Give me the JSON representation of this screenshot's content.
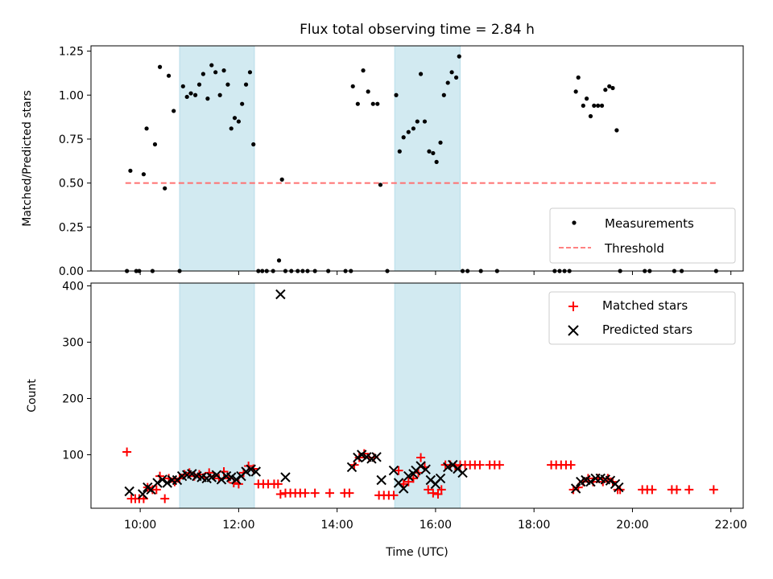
{
  "title": "Flux total observing time = 2.84 h",
  "colors": {
    "measurement": "#000000",
    "threshold": "#ff7070",
    "matched": "#ff0000",
    "predicted": "#000000",
    "shade": "#add8e6"
  },
  "chart_data": [
    {
      "type": "scatter",
      "panel": "top",
      "ylabel": "Matched/Predicted stars",
      "xlabel": "",
      "xlim": [
        9.0,
        22.25
      ],
      "ylim": [
        0,
        1.28
      ],
      "yticks": [
        0,
        0.25,
        0.5,
        0.75,
        1.0,
        1.25
      ],
      "ytick_labels": [
        "0.00",
        "0.25",
        "0.50",
        "0.75",
        "1.00",
        "1.25"
      ],
      "xticks": [
        10,
        12,
        14,
        16,
        18,
        20,
        22
      ],
      "shaded_spans": [
        [
          10.8,
          12.32
        ],
        [
          15.17,
          16.5
        ]
      ],
      "legend": {
        "position": "lower-right",
        "entries": [
          "Measurements",
          "Threshold"
        ]
      },
      "threshold": {
        "name": "Threshold",
        "y": 0.5,
        "x": [
          9.7,
          21.7
        ]
      },
      "series": [
        {
          "name": "Measurements",
          "points": [
            [
              9.73,
              0.0
            ],
            [
              9.8,
              0.57
            ],
            [
              9.92,
              0.0
            ],
            [
              9.98,
              0.0
            ],
            [
              10.07,
              0.55
            ],
            [
              10.13,
              0.81
            ],
            [
              10.25,
              0.0
            ],
            [
              10.3,
              0.72
            ],
            [
              10.4,
              1.16
            ],
            [
              10.5,
              0.47
            ],
            [
              10.58,
              1.11
            ],
            [
              10.68,
              0.91
            ],
            [
              10.8,
              0.0
            ],
            [
              10.87,
              1.05
            ],
            [
              10.95,
              0.99
            ],
            [
              11.03,
              1.01
            ],
            [
              11.12,
              1.0
            ],
            [
              11.2,
              1.06
            ],
            [
              11.28,
              1.12
            ],
            [
              11.37,
              0.98
            ],
            [
              11.45,
              1.17
            ],
            [
              11.53,
              1.13
            ],
            [
              11.62,
              1.0
            ],
            [
              11.7,
              1.14
            ],
            [
              11.78,
              1.06
            ],
            [
              11.85,
              0.81
            ],
            [
              11.92,
              0.87
            ],
            [
              12.0,
              0.85
            ],
            [
              12.07,
              0.95
            ],
            [
              12.15,
              1.06
            ],
            [
              12.23,
              1.13
            ],
            [
              12.3,
              0.72
            ],
            [
              12.4,
              0.0
            ],
            [
              12.48,
              0.0
            ],
            [
              12.57,
              0.0
            ],
            [
              12.7,
              0.0
            ],
            [
              12.82,
              0.06
            ],
            [
              12.88,
              0.52
            ],
            [
              12.95,
              0.0
            ],
            [
              13.07,
              0.0
            ],
            [
              13.2,
              0.0
            ],
            [
              13.3,
              0.0
            ],
            [
              13.4,
              0.0
            ],
            [
              13.55,
              0.0
            ],
            [
              13.82,
              0.0
            ],
            [
              14.17,
              0.0
            ],
            [
              14.28,
              0.0
            ],
            [
              14.32,
              1.05
            ],
            [
              14.42,
              0.95
            ],
            [
              14.53,
              1.14
            ],
            [
              14.63,
              1.02
            ],
            [
              14.73,
              0.95
            ],
            [
              14.82,
              0.95
            ],
            [
              14.88,
              0.49
            ],
            [
              15.02,
              0.0
            ],
            [
              15.2,
              1.0
            ],
            [
              15.27,
              0.68
            ],
            [
              15.35,
              0.76
            ],
            [
              15.45,
              0.79
            ],
            [
              15.55,
              0.81
            ],
            [
              15.63,
              0.85
            ],
            [
              15.7,
              1.12
            ],
            [
              15.78,
              0.85
            ],
            [
              15.87,
              0.68
            ],
            [
              15.95,
              0.67
            ],
            [
              16.02,
              0.62
            ],
            [
              16.1,
              0.73
            ],
            [
              16.17,
              1.0
            ],
            [
              16.25,
              1.07
            ],
            [
              16.33,
              1.13
            ],
            [
              16.42,
              1.1
            ],
            [
              16.48,
              1.22
            ],
            [
              16.55,
              0.0
            ],
            [
              16.65,
              0.0
            ],
            [
              16.92,
              0.0
            ],
            [
              17.25,
              0.0
            ],
            [
              18.42,
              0.0
            ],
            [
              18.52,
              0.0
            ],
            [
              18.62,
              0.0
            ],
            [
              18.72,
              0.0
            ],
            [
              18.85,
              1.02
            ],
            [
              18.9,
              1.1
            ],
            [
              19.0,
              0.94
            ],
            [
              19.07,
              0.98
            ],
            [
              19.15,
              0.88
            ],
            [
              19.22,
              0.94
            ],
            [
              19.3,
              0.94
            ],
            [
              19.38,
              0.94
            ],
            [
              19.45,
              1.03
            ],
            [
              19.53,
              1.05
            ],
            [
              19.6,
              1.04
            ],
            [
              19.68,
              0.8
            ],
            [
              19.75,
              0.0
            ],
            [
              20.25,
              0.0
            ],
            [
              20.35,
              0.0
            ],
            [
              20.85,
              0.0
            ],
            [
              21.0,
              0.0
            ],
            [
              21.7,
              0.0
            ]
          ]
        }
      ]
    },
    {
      "type": "scatter",
      "panel": "bottom",
      "ylabel": "Count",
      "xlabel": "Time (UTC)",
      "xlim": [
        9.0,
        22.25
      ],
      "ylim": [
        5,
        405
      ],
      "yticks": [
        100,
        200,
        300,
        400
      ],
      "ytick_labels": [
        "100",
        "200",
        "300",
        "400"
      ],
      "xticks": [
        10,
        12,
        14,
        16,
        18,
        20,
        22
      ],
      "xtick_labels": [
        "10:00",
        "12:00",
        "14:00",
        "16:00",
        "18:00",
        "20:00",
        "22:00"
      ],
      "shaded_spans": [
        [
          10.8,
          12.32
        ],
        [
          15.17,
          16.5
        ]
      ],
      "legend": {
        "position": "upper-right",
        "entries": [
          "Matched stars",
          "Predicted stars"
        ]
      },
      "series": [
        {
          "name": "Matched stars",
          "marker": "plus",
          "points": [
            [
              9.73,
              105
            ],
            [
              9.82,
              22
            ],
            [
              9.9,
              22
            ],
            [
              9.98,
              22
            ],
            [
              10.07,
              22
            ],
            [
              10.15,
              42
            ],
            [
              10.25,
              38
            ],
            [
              10.33,
              38
            ],
            [
              10.4,
              62
            ],
            [
              10.5,
              22
            ],
            [
              10.58,
              58
            ],
            [
              10.7,
              52
            ],
            [
              10.8,
              58
            ],
            [
              10.9,
              65
            ],
            [
              11.0,
              68
            ],
            [
              11.1,
              62
            ],
            [
              11.2,
              65
            ],
            [
              11.3,
              60
            ],
            [
              11.4,
              68
            ],
            [
              11.5,
              62
            ],
            [
              11.6,
              58
            ],
            [
              11.7,
              70
            ],
            [
              11.8,
              58
            ],
            [
              11.9,
              50
            ],
            [
              12.0,
              48
            ],
            [
              12.1,
              68
            ],
            [
              12.2,
              80
            ],
            [
              12.3,
              75
            ],
            [
              12.4,
              48
            ],
            [
              12.5,
              48
            ],
            [
              12.6,
              48
            ],
            [
              12.72,
              48
            ],
            [
              12.8,
              48
            ],
            [
              12.85,
              30
            ],
            [
              12.95,
              32
            ],
            [
              13.05,
              32
            ],
            [
              13.15,
              32
            ],
            [
              13.25,
              32
            ],
            [
              13.35,
              32
            ],
            [
              13.55,
              32
            ],
            [
              13.85,
              32
            ],
            [
              14.15,
              32
            ],
            [
              14.25,
              32
            ],
            [
              14.35,
              82
            ],
            [
              14.45,
              95
            ],
            [
              14.55,
              102
            ],
            [
              14.65,
              95
            ],
            [
              14.75,
              95
            ],
            [
              14.85,
              28
            ],
            [
              14.95,
              28
            ],
            [
              15.05,
              28
            ],
            [
              15.15,
              28
            ],
            [
              15.25,
              72
            ],
            [
              15.35,
              48
            ],
            [
              15.45,
              52
            ],
            [
              15.55,
              58
            ],
            [
              15.65,
              68
            ],
            [
              15.7,
              95
            ],
            [
              15.78,
              78
            ],
            [
              15.85,
              38
            ],
            [
              15.95,
              32
            ],
            [
              16.05,
              30
            ],
            [
              16.12,
              38
            ],
            [
              16.2,
              82
            ],
            [
              16.3,
              82
            ],
            [
              16.4,
              80
            ],
            [
              16.5,
              82
            ],
            [
              16.6,
              82
            ],
            [
              16.7,
              82
            ],
            [
              16.8,
              82
            ],
            [
              16.9,
              82
            ],
            [
              17.1,
              82
            ],
            [
              17.2,
              82
            ],
            [
              17.3,
              82
            ],
            [
              18.35,
              82
            ],
            [
              18.45,
              82
            ],
            [
              18.55,
              82
            ],
            [
              18.65,
              82
            ],
            [
              18.75,
              82
            ],
            [
              18.8,
              38
            ],
            [
              18.9,
              42
            ],
            [
              19.0,
              52
            ],
            [
              19.1,
              58
            ],
            [
              19.2,
              52
            ],
            [
              19.3,
              58
            ],
            [
              19.4,
              52
            ],
            [
              19.5,
              58
            ],
            [
              19.6,
              52
            ],
            [
              19.7,
              38
            ],
            [
              19.75,
              38
            ],
            [
              20.2,
              38
            ],
            [
              20.3,
              38
            ],
            [
              20.4,
              38
            ],
            [
              20.8,
              38
            ],
            [
              20.9,
              38
            ],
            [
              21.15,
              38
            ],
            [
              21.65,
              38
            ]
          ]
        },
        {
          "name": "Predicted stars",
          "marker": "x",
          "points": [
            [
              9.78,
              35
            ],
            [
              10.05,
              30
            ],
            [
              10.15,
              42
            ],
            [
              10.22,
              38
            ],
            [
              10.35,
              50
            ],
            [
              10.45,
              56
            ],
            [
              10.55,
              50
            ],
            [
              10.65,
              55
            ],
            [
              10.75,
              55
            ],
            [
              10.85,
              62
            ],
            [
              10.95,
              64
            ],
            [
              11.05,
              66
            ],
            [
              11.15,
              62
            ],
            [
              11.25,
              60
            ],
            [
              11.35,
              58
            ],
            [
              11.45,
              60
            ],
            [
              11.55,
              64
            ],
            [
              11.65,
              56
            ],
            [
              11.75,
              62
            ],
            [
              11.85,
              60
            ],
            [
              11.95,
              56
            ],
            [
              12.05,
              62
            ],
            [
              12.15,
              70
            ],
            [
              12.25,
              74
            ],
            [
              12.35,
              70
            ],
            [
              12.85,
              385
            ],
            [
              12.95,
              60
            ],
            [
              14.3,
              78
            ],
            [
              14.42,
              95
            ],
            [
              14.5,
              100
            ],
            [
              14.6,
              96
            ],
            [
              14.7,
              93
            ],
            [
              14.8,
              96
            ],
            [
              14.9,
              55
            ],
            [
              15.15,
              72
            ],
            [
              15.25,
              50
            ],
            [
              15.35,
              40
            ],
            [
              15.45,
              62
            ],
            [
              15.55,
              66
            ],
            [
              15.6,
              72
            ],
            [
              15.7,
              80
            ],
            [
              15.8,
              74
            ],
            [
              15.9,
              55
            ],
            [
              16.0,
              48
            ],
            [
              16.1,
              58
            ],
            [
              16.25,
              78
            ],
            [
              16.35,
              82
            ],
            [
              16.45,
              75
            ],
            [
              16.55,
              68
            ],
            [
              18.85,
              40
            ],
            [
              18.95,
              52
            ],
            [
              19.05,
              55
            ],
            [
              19.15,
              52
            ],
            [
              19.25,
              58
            ],
            [
              19.35,
              58
            ],
            [
              19.45,
              56
            ],
            [
              19.55,
              54
            ],
            [
              19.65,
              48
            ],
            [
              19.72,
              42
            ]
          ]
        }
      ]
    }
  ]
}
